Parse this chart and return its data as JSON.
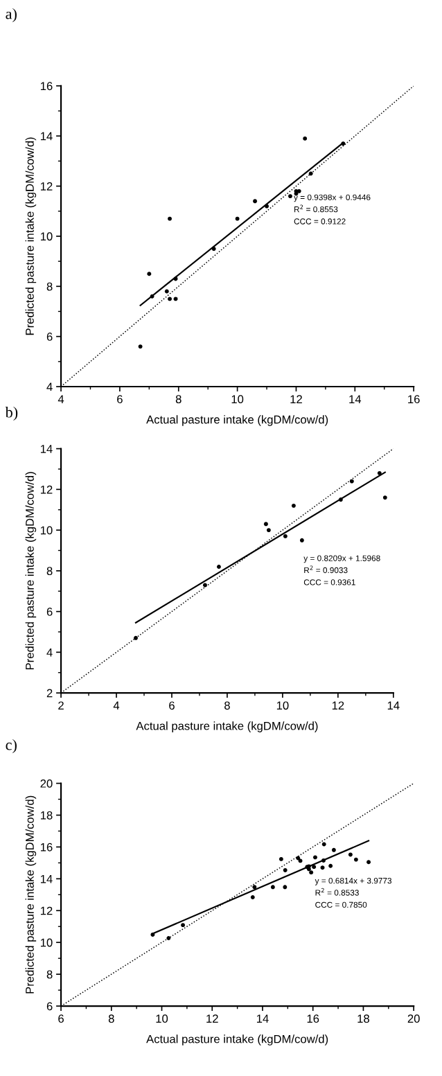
{
  "chart_data": [
    {
      "type": "scatter",
      "title": "a)",
      "xlabel": "Actual pasture intake (kgDM/cow/d)",
      "ylabel": "Predicted pasture intake (kgDM/cow/d)",
      "xlim": [
        4,
        16
      ],
      "ylim": [
        4,
        16
      ],
      "xticks": [
        4,
        6,
        8,
        10,
        12,
        14,
        16
      ],
      "yticks": [
        4,
        6,
        8,
        10,
        12,
        14,
        16
      ],
      "grid": false,
      "legend": false,
      "annotations": [
        "y = 0.9398x + 0.9446",
        "R$^{2}$ = 0.8553",
        "CCC = 0.9122"
      ],
      "series": [
        {
          "marker": "circle",
          "color": "#000000",
          "x": [
            6.7,
            7.0,
            7.1,
            7.6,
            7.7,
            7.7,
            7.9,
            7.9,
            9.2,
            10.0,
            10.6,
            11.0,
            11.8,
            12.0,
            12.0,
            12.1,
            12.3,
            12.5,
            13.6
          ],
          "values": [
            5.6,
            8.5,
            7.6,
            7.8,
            7.5,
            10.7,
            8.3,
            7.5,
            9.5,
            10.7,
            11.4,
            11.2,
            11.6,
            11.7,
            11.8,
            11.8,
            13.9,
            12.5,
            13.7
          ]
        },
        {
          "type": "line",
          "color": "#000000",
          "line_style": "solid",
          "x": [
            6.7,
            13.6
          ],
          "values": [
            7.24,
            13.73
          ]
        },
        {
          "type": "line",
          "color": "#000000",
          "line_style": "dotted",
          "x": [
            4,
            16
          ],
          "values": [
            4,
            16
          ]
        }
      ]
    },
    {
      "type": "scatter",
      "title": "b)",
      "xlabel": "Actual pasture intake (kgDM/cow/d)",
      "ylabel": "Predicted pasture intake (kgDM/cow/d)",
      "xlim": [
        2,
        14
      ],
      "ylim": [
        2,
        14
      ],
      "xticks": [
        2,
        4,
        6,
        8,
        10,
        12,
        14
      ],
      "yticks": [
        2,
        4,
        6,
        8,
        10,
        12,
        14
      ],
      "grid": false,
      "legend": false,
      "annotations": [
        "y = 0.8209x + 1.5968",
        "R$^{2}$ = 0.9033",
        "CCC = 0.9361"
      ],
      "series": [
        {
          "marker": "circle",
          "color": "#000000",
          "x": [
            4.7,
            7.2,
            7.7,
            9.4,
            9.5,
            10.1,
            10.4,
            10.7,
            12.1,
            12.5,
            13.5,
            13.7
          ],
          "values": [
            4.7,
            7.3,
            8.2,
            10.3,
            10.0,
            9.7,
            11.2,
            9.5,
            11.5,
            12.4,
            12.8,
            11.6
          ]
        },
        {
          "type": "line",
          "color": "#000000",
          "line_style": "solid",
          "x": [
            4.7,
            13.7
          ],
          "values": [
            5.45,
            12.84
          ]
        },
        {
          "type": "line",
          "color": "#000000",
          "line_style": "dotted",
          "x": [
            2,
            14
          ],
          "values": [
            2,
            14
          ]
        }
      ]
    },
    {
      "type": "scatter",
      "title": "c)",
      "xlabel": "Actual pasture intake (kgDM/cow/d)",
      "ylabel": "Predicted pasture intake (kgDM/cow/d)",
      "xlim": [
        6,
        20
      ],
      "ylim": [
        6,
        20
      ],
      "xticks": [
        6,
        8,
        10,
        12,
        14,
        16,
        18,
        20
      ],
      "yticks": [
        6,
        8,
        10,
        12,
        14,
        16,
        18,
        20
      ],
      "grid": false,
      "legend": false,
      "annotations": [
        "y = 0.6814x + 3.9773",
        "R$^{2}$ = 0.8533",
        "CCC = 0.7850"
      ],
      "series": [
        {
          "marker": "circle",
          "color": "#000000",
          "x": [
            9.64,
            10.27,
            10.84,
            13.61,
            13.68,
            14.41,
            14.74,
            14.9,
            14.89,
            15.41,
            15.5,
            15.77,
            15.84,
            15.84,
            15.93,
            16.04,
            16.09,
            16.38,
            16.42,
            16.44,
            16.7,
            16.83,
            17.49,
            17.71,
            18.21
          ],
          "values": [
            10.49,
            10.27,
            11.09,
            12.84,
            13.48,
            13.48,
            15.24,
            14.54,
            13.48,
            15.3,
            15.13,
            14.75,
            14.78,
            14.61,
            14.4,
            14.75,
            15.35,
            14.7,
            15.15,
            16.17,
            14.81,
            15.81,
            15.52,
            15.21,
            15.05
          ]
        },
        {
          "type": "line",
          "color": "#000000",
          "line_style": "solid",
          "x": [
            9.64,
            18.21
          ],
          "values": [
            10.55,
            16.39
          ]
        },
        {
          "type": "line",
          "color": "#000000",
          "line_style": "dotted",
          "x": [
            6,
            20
          ],
          "values": [
            6,
            20
          ]
        }
      ]
    }
  ]
}
